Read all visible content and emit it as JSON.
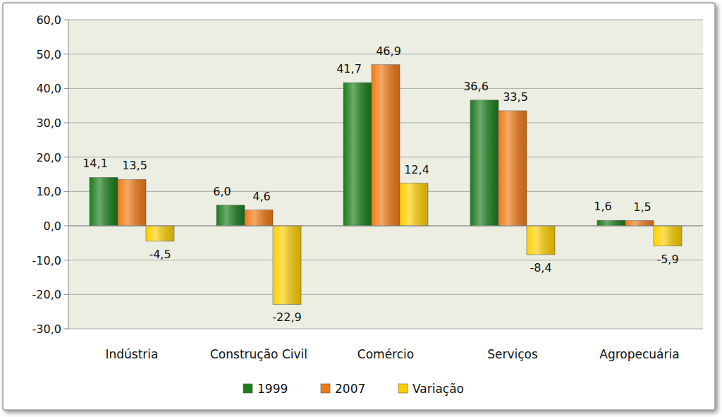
{
  "chart_data": {
    "type": "bar",
    "categories": [
      "Indústria",
      "Construção Civil",
      "Comércio",
      "Serviços",
      "Agropecuária"
    ],
    "series": [
      {
        "name": "1999",
        "color": "#1b7d1b",
        "values": [
          14.1,
          6.0,
          41.7,
          36.6,
          1.6
        ],
        "value_labels": [
          "14,1",
          "6,0",
          "41,7",
          "36,6",
          "1,6"
        ]
      },
      {
        "name": "2007",
        "color": "#f07a16",
        "values": [
          13.5,
          4.6,
          46.9,
          33.5,
          1.5
        ],
        "value_labels": [
          "13,5",
          "4,6",
          "46,9",
          "33,5",
          "1,5"
        ]
      },
      {
        "name": "Variação",
        "color": "#ffd000",
        "values": [
          -4.5,
          -22.9,
          12.4,
          -8.4,
          -5.9
        ],
        "value_labels": [
          "-4,5",
          "-22,9",
          "12,4",
          "-8,4",
          "-5,9"
        ]
      }
    ],
    "ylim": [
      -30,
      60
    ],
    "yticks": [
      {
        "value": -30,
        "label": "-30,0"
      },
      {
        "value": -20,
        "label": "-20,0"
      },
      {
        "value": -10,
        "label": "-10,0"
      },
      {
        "value": 0,
        "label": "0,0"
      },
      {
        "value": 10,
        "label": "10,0"
      },
      {
        "value": 20,
        "label": "20,0"
      },
      {
        "value": 30,
        "label": "30,0"
      },
      {
        "value": 40,
        "label": "40,0"
      },
      {
        "value": 50,
        "label": "50,0"
      },
      {
        "value": 60,
        "label": "60,0"
      }
    ],
    "grid": true,
    "legend": "bottom",
    "data_labels": true
  }
}
